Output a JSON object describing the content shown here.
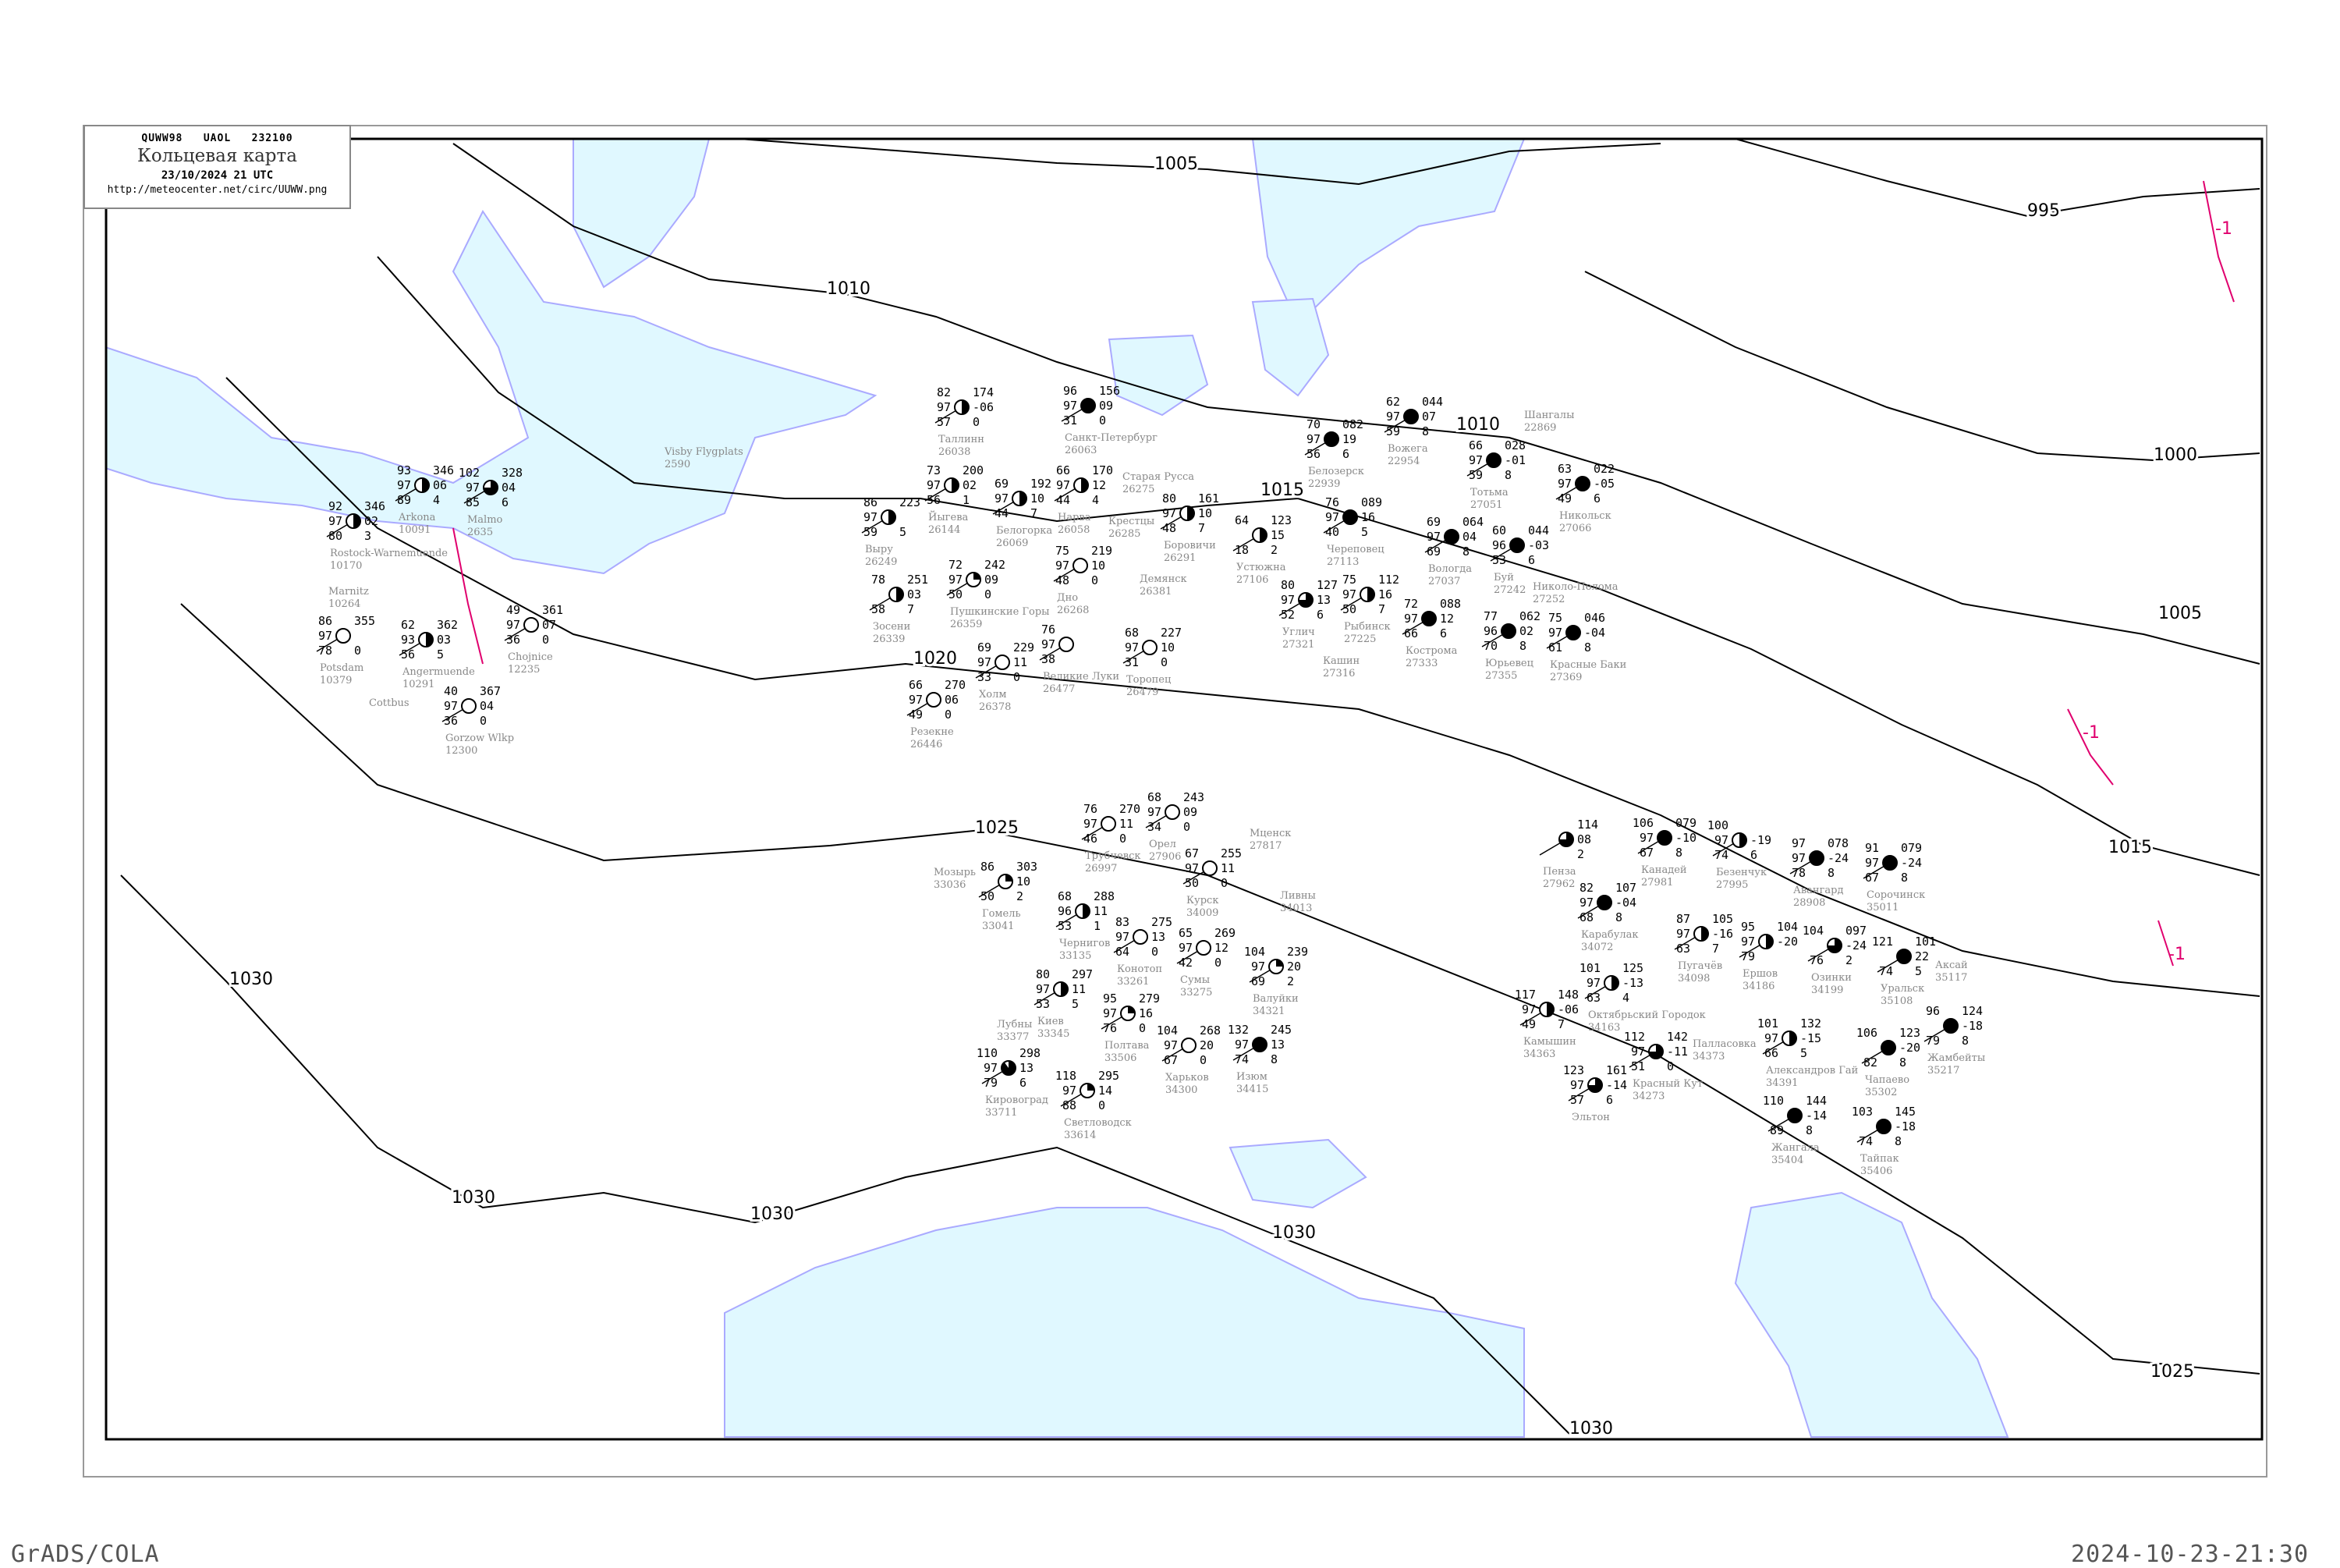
{
  "header": {
    "bulletin": "QUWW98   UAOL   232100",
    "title": "Кольцевая карта",
    "datetime": "23/10/2024 21 UTC",
    "url": "http://meteocenter.net/circ/UUWW.png"
  },
  "footer": {
    "left": "GrADS/COLA",
    "right": "2024-10-23-21:30"
  },
  "colors": {
    "sea": "#e0f8ff",
    "coast": "#aaaaff",
    "isobar": "#000000",
    "tendency": "#e0006e",
    "isotherm": "#0099ee",
    "station_name": "#888888"
  },
  "isobar_labels": [
    "1005",
    "1010",
    "995",
    "1000",
    "1005",
    "1010",
    "1015",
    "1015",
    "1020",
    "1025",
    "1030",
    "1030",
    "1030",
    "1030",
    "1025",
    "1030"
  ],
  "tendency_labels": [
    "-1",
    "-1",
    "-1"
  ],
  "stations": [
    {
      "name": "Санкт-Петербург",
      "id": "26063",
      "obs": [
        "96",
        "97",
        "31",
        "156",
        "09",
        "0"
      ],
      "cover": 1
    },
    {
      "name": "Нарва",
      "id": "26058",
      "obs": [
        "66",
        "97",
        "44",
        "170",
        "12",
        "4"
      ],
      "cover": 0.5
    },
    {
      "name": "Белогорка",
      "id": "26069",
      "obs": [
        "69",
        "97",
        "44",
        "192",
        "10",
        "7"
      ],
      "cover": 0.5
    },
    {
      "name": "Боровичи",
      "id": "26291",
      "obs": [
        "80",
        "97",
        "48",
        "161",
        "10",
        "7"
      ],
      "cover": 0.5
    },
    {
      "name": "Дно",
      "id": "26268",
      "obs": [
        "75",
        "97",
        "48",
        "219",
        "10",
        "0"
      ],
      "cover": 0
    },
    {
      "name": "Пушкинские Горы",
      "id": "26359",
      "obs": [
        "72",
        "97",
        "50",
        "242",
        "09",
        "0"
      ],
      "cover": 0.25
    },
    {
      "name": "Великие Луки",
      "id": "26477",
      "obs": [
        "76",
        "97",
        "38",
        "",
        "",
        ""
      ],
      "cover": 0
    },
    {
      "name": "Торопец",
      "id": "26479",
      "obs": [
        "68",
        "97",
        "31",
        "227",
        "10",
        "0"
      ],
      "cover": 0
    },
    {
      "name": "Холм",
      "id": "26378",
      "obs": [
        "69",
        "97",
        "33",
        "229",
        "11",
        "0"
      ],
      "cover": 0
    },
    {
      "name": "Демянск",
      "id": "26381",
      "obs": null,
      "cover": 0
    },
    {
      "name": "Таллинн",
      "id": "26038",
      "obs": [
        "82",
        "97",
        "57",
        "174",
        "-06",
        "0"
      ],
      "cover": 0.5
    },
    {
      "name": "Йыгева",
      "id": "26144",
      "obs": [
        "73",
        "97",
        "56",
        "200",
        "02",
        "1"
      ],
      "cover": 0.5
    },
    {
      "name": "Выру",
      "id": "26249",
      "obs": [
        "86",
        "97",
        "59",
        "223",
        "",
        "5"
      ],
      "cover": 0.5
    },
    {
      "name": "Зосени",
      "id": "26339",
      "obs": [
        "78",
        "",
        "58",
        "251",
        "03",
        "7"
      ],
      "cover": 0.5
    },
    {
      "name": "Резекне",
      "id": "26446",
      "obs": [
        "66",
        "97",
        "49",
        "270",
        "06",
        "0"
      ],
      "cover": 0
    },
    {
      "name": "Крестцы",
      "id": "26285",
      "obs": null,
      "cover": 0
    },
    {
      "name": "Старая Русса",
      "id": "26275",
      "obs": null,
      "cover": 0
    },
    {
      "name": "Белозерск",
      "id": "22939",
      "obs": [
        "70",
        "97",
        "56",
        "082",
        "19",
        "6"
      ],
      "cover": 1
    },
    {
      "name": "Череповец",
      "id": "27113",
      "obs": [
        "76",
        "97",
        "40",
        "089",
        "16",
        "5"
      ],
      "cover": 1
    },
    {
      "name": "Тотьма",
      "id": "27051",
      "obs": [
        "66",
        "97",
        "59",
        "028",
        "-01",
        "8"
      ],
      "cover": 1
    },
    {
      "name": "Вологда",
      "id": "27037",
      "obs": [
        "69",
        "97",
        "69",
        "064",
        "04",
        "8"
      ],
      "cover": 1
    },
    {
      "name": "Рыбинск",
      "id": "27225",
      "obs": [
        "75",
        "97",
        "50",
        "112",
        "16",
        "7"
      ],
      "cover": 0.5
    },
    {
      "name": "Кострома",
      "id": "27333",
      "obs": [
        "72",
        "97",
        "66",
        "088",
        "12",
        "6"
      ],
      "cover": 1
    },
    {
      "name": "Буй",
      "id": "27242",
      "obs": [
        "60",
        "96",
        "53",
        "044",
        "-03",
        "6"
      ],
      "cover": 1
    },
    {
      "name": "Никольск",
      "id": "27066",
      "obs": [
        "63",
        "97",
        "49",
        "022",
        "-05",
        "6"
      ],
      "cover": 1
    },
    {
      "name": "Николо-Полома",
      "id": "27252",
      "obs": null,
      "cover": 0
    },
    {
      "name": "Юрьевец",
      "id": "27355",
      "obs": [
        "77",
        "96",
        "70",
        "062",
        "02",
        "8"
      ],
      "cover": 1
    },
    {
      "name": "Углич",
      "id": "27321",
      "obs": [
        "80",
        "97",
        "52",
        "127",
        "13",
        "6"
      ],
      "cover": 0.75
    },
    {
      "name": "Кашин",
      "id": "27316",
      "obs": null,
      "cover": 0
    },
    {
      "name": "Устюжна",
      "id": "27106",
      "obs": [
        "64",
        "",
        "18",
        "123",
        "15",
        "2"
      ],
      "cover": 0.5
    },
    {
      "name": "Вожега",
      "id": "22954",
      "obs": [
        "62",
        "97",
        "59",
        "044",
        "07",
        "8"
      ],
      "cover": 1
    },
    {
      "name": "Шангалы",
      "id": "22869",
      "obs": null,
      "cover": 0
    },
    {
      "name": "Красные Баки",
      "id": "27369",
      "obs": [
        "75",
        "97",
        "61",
        "046",
        "-04",
        "8"
      ],
      "cover": 1
    },
    {
      "name": "Чернигов",
      "id": "33135",
      "obs": [
        "68",
        "96",
        "53",
        "288",
        "11",
        "1"
      ],
      "cover": 0.5
    },
    {
      "name": "Киев",
      "id": "33345",
      "obs": [
        "80",
        "97",
        "53",
        "297",
        "11",
        "5"
      ],
      "cover": 0.5
    },
    {
      "name": "Конотоп",
      "id": "33261",
      "obs": [
        "83",
        "97",
        "64",
        "275",
        "13",
        "0"
      ],
      "cover": 0
    },
    {
      "name": "Сумы",
      "id": "33275",
      "obs": [
        "65",
        "97",
        "42",
        "269",
        "12",
        "0"
      ],
      "cover": 0
    },
    {
      "name": "Курск",
      "id": "34009",
      "obs": [
        "67",
        "97",
        "50",
        "255",
        "11",
        "0"
      ],
      "cover": 0
    },
    {
      "name": "Орел",
      "id": "27906",
      "obs": [
        "68",
        "97",
        "34",
        "243",
        "09",
        "0"
      ],
      "cover": 0
    },
    {
      "name": "Полтава",
      "id": "33506",
      "obs": [
        "95",
        "97",
        "76",
        "279",
        "16",
        "0"
      ],
      "cover": 0.25
    },
    {
      "name": "Харьков",
      "id": "34300",
      "obs": [
        "104",
        "97",
        "67",
        "268",
        "20",
        "0"
      ],
      "cover": 0
    },
    {
      "name": "Изюм",
      "id": "34415",
      "obs": [
        "132",
        "97",
        "74",
        "245",
        "13",
        "8"
      ],
      "cover": 1
    },
    {
      "name": "Кировоград",
      "id": "33711",
      "obs": [
        "110",
        "97",
        "79",
        "298",
        "13",
        "6"
      ],
      "cover": 0.9
    },
    {
      "name": "Светловодск",
      "id": "33614",
      "obs": [
        "118",
        "97",
        "88",
        "295",
        "14",
        "0"
      ],
      "cover": 0.25
    },
    {
      "name": "Лубны",
      "id": "33377",
      "obs": null,
      "cover": 0
    },
    {
      "name": "Гомель",
      "id": "33041",
      "obs": [
        "86",
        "",
        "50",
        "303",
        "10",
        "2"
      ],
      "cover": 0.25
    },
    {
      "name": "Мозырь",
      "id": "33036",
      "obs": null,
      "cover": 0
    },
    {
      "name": "Трубчевск",
      "id": "26997",
      "obs": [
        "76",
        "97",
        "46",
        "270",
        "11",
        "0"
      ],
      "cover": 0
    },
    {
      "name": "Валуйки",
      "id": "34321",
      "obs": [
        "104",
        "97",
        "69",
        "239",
        "20",
        "2"
      ],
      "cover": 0.25
    },
    {
      "name": "Ливны",
      "id": "34013",
      "obs": null,
      "cover": 0
    },
    {
      "name": "Мценск",
      "id": "27817",
      "obs": null,
      "cover": 0
    },
    {
      "name": "Пенза",
      "id": "27962",
      "obs": [
        "",
        "",
        "",
        "114",
        "08",
        "2"
      ],
      "cover": 0.75
    },
    {
      "name": "Канадей",
      "id": "27981",
      "obs": [
        "106",
        "97",
        "67",
        "079",
        "-10",
        "8"
      ],
      "cover": 1
    },
    {
      "name": "Безенчук",
      "id": "27995",
      "obs": [
        "100",
        "97",
        "74",
        "",
        "-19",
        "6"
      ],
      "cover": 0.5
    },
    {
      "name": "Авангард",
      "id": "28908",
      "obs": [
        "97",
        "97",
        "78",
        "078",
        "-24",
        "8"
      ],
      "cover": 1
    },
    {
      "name": "Сорочинск",
      "id": "35011",
      "obs": [
        "91",
        "97",
        "67",
        "079",
        "-24",
        "8"
      ],
      "cover": 1
    },
    {
      "name": "Карабулак",
      "id": "34072",
      "obs": [
        "82",
        "97",
        "68",
        "107",
        "-04",
        "8"
      ],
      "cover": 1
    },
    {
      "name": "Пугачёв",
      "id": "34098",
      "obs": [
        "87",
        "97",
        "63",
        "105",
        "-16",
        "7"
      ],
      "cover": 0.5
    },
    {
      "name": "Ершов",
      "id": "34186",
      "obs": [
        "95",
        "97",
        "79",
        "104",
        "-20",
        ""
      ],
      "cover": 0.5
    },
    {
      "name": "Озинки",
      "id": "34199",
      "obs": [
        "104",
        "",
        "76",
        "097",
        "-24",
        "2"
      ],
      "cover": 0.75
    },
    {
      "name": "Уральск",
      "id": "35108",
      "obs": [
        "121",
        "",
        "74",
        "101",
        "22",
        "5"
      ],
      "cover": 1
    },
    {
      "name": "Аксай",
      "id": "35117",
      "obs": null,
      "cover": 0
    },
    {
      "name": "Октябрьский Городок",
      "id": "34163",
      "obs": [
        "101",
        "97",
        "63",
        "125",
        "-13",
        "4"
      ],
      "cover": 0.5
    },
    {
      "name": "Красный Кут",
      "id": "34273",
      "obs": [
        "112",
        "97",
        "51",
        "142",
        "-11",
        "0"
      ],
      "cover": 0.75
    },
    {
      "name": "Камышин",
      "id": "34363",
      "obs": [
        "117",
        "97",
        "49",
        "148",
        "-06",
        "7"
      ],
      "cover": 0.5
    },
    {
      "name": "Палласовка",
      "id": "34373",
      "obs": null,
      "cover": 0
    },
    {
      "name": "Александров Гай",
      "id": "34391",
      "obs": [
        "101",
        "97",
        "66",
        "132",
        "-15",
        "5"
      ],
      "cover": 0.5
    },
    {
      "name": "Чапаево",
      "id": "35302",
      "obs": [
        "106",
        "",
        "82",
        "123",
        "-20",
        "8"
      ],
      "cover": 1
    },
    {
      "name": "Жамбейты",
      "id": "35217",
      "obs": [
        "96",
        "",
        "79",
        "124",
        "-18",
        "8"
      ],
      "cover": 1
    },
    {
      "name": "Жангала",
      "id": "35404",
      "obs": [
        "110",
        "",
        "89",
        "144",
        "-14",
        "8"
      ],
      "cover": 1
    },
    {
      "name": "Тайпак",
      "id": "35406",
      "obs": [
        "103",
        "",
        "74",
        "145",
        "-18",
        "8"
      ],
      "cover": 1
    },
    {
      "name": "Эльтон",
      "id": "",
      "obs": [
        "123",
        "97",
        "57",
        "161",
        "-14",
        "6"
      ],
      "cover": 0.75
    },
    {
      "name": "Rostock-Warnemuende",
      "id": "10170",
      "obs": [
        "92",
        "97",
        "80",
        "346",
        "02",
        "3"
      ],
      "cover": 0.5
    },
    {
      "name": "Arkona",
      "id": "10091",
      "obs": [
        "93",
        "97",
        "89",
        "346",
        "06",
        "4"
      ],
      "cover": 0.5
    },
    {
      "name": "Malmo",
      "id": "2635",
      "obs": [
        "102",
        "97",
        "85",
        "328",
        "04",
        "6"
      ],
      "cover": 0.75
    },
    {
      "name": "Marnitz",
      "id": "10264",
      "obs": null,
      "cover": 0
    },
    {
      "name": "Potsdam",
      "id": "10379",
      "obs": [
        "86",
        "97",
        "78",
        "355",
        "",
        "0"
      ],
      "cover": 0
    },
    {
      "name": "Angermuende",
      "id": "10291",
      "obs": [
        "62",
        "93",
        "56",
        "362",
        "03",
        "5"
      ],
      "cover": 0.5
    },
    {
      "name": "Gorzow Wlkp",
      "id": "12300",
      "obs": [
        "40",
        "97",
        "36",
        "367",
        "04",
        "0"
      ],
      "cover": 0
    },
    {
      "name": "Chojnice",
      "id": "12235",
      "obs": [
        "49",
        "97",
        "36",
        "361",
        "07",
        "0"
      ],
      "cover": 0
    },
    {
      "name": "Visby Flygplats",
      "id": "2590",
      "obs": null,
      "cover": 0
    },
    {
      "name": "Cottbus",
      "id": "",
      "obs": null,
      "cover": 0
    }
  ]
}
